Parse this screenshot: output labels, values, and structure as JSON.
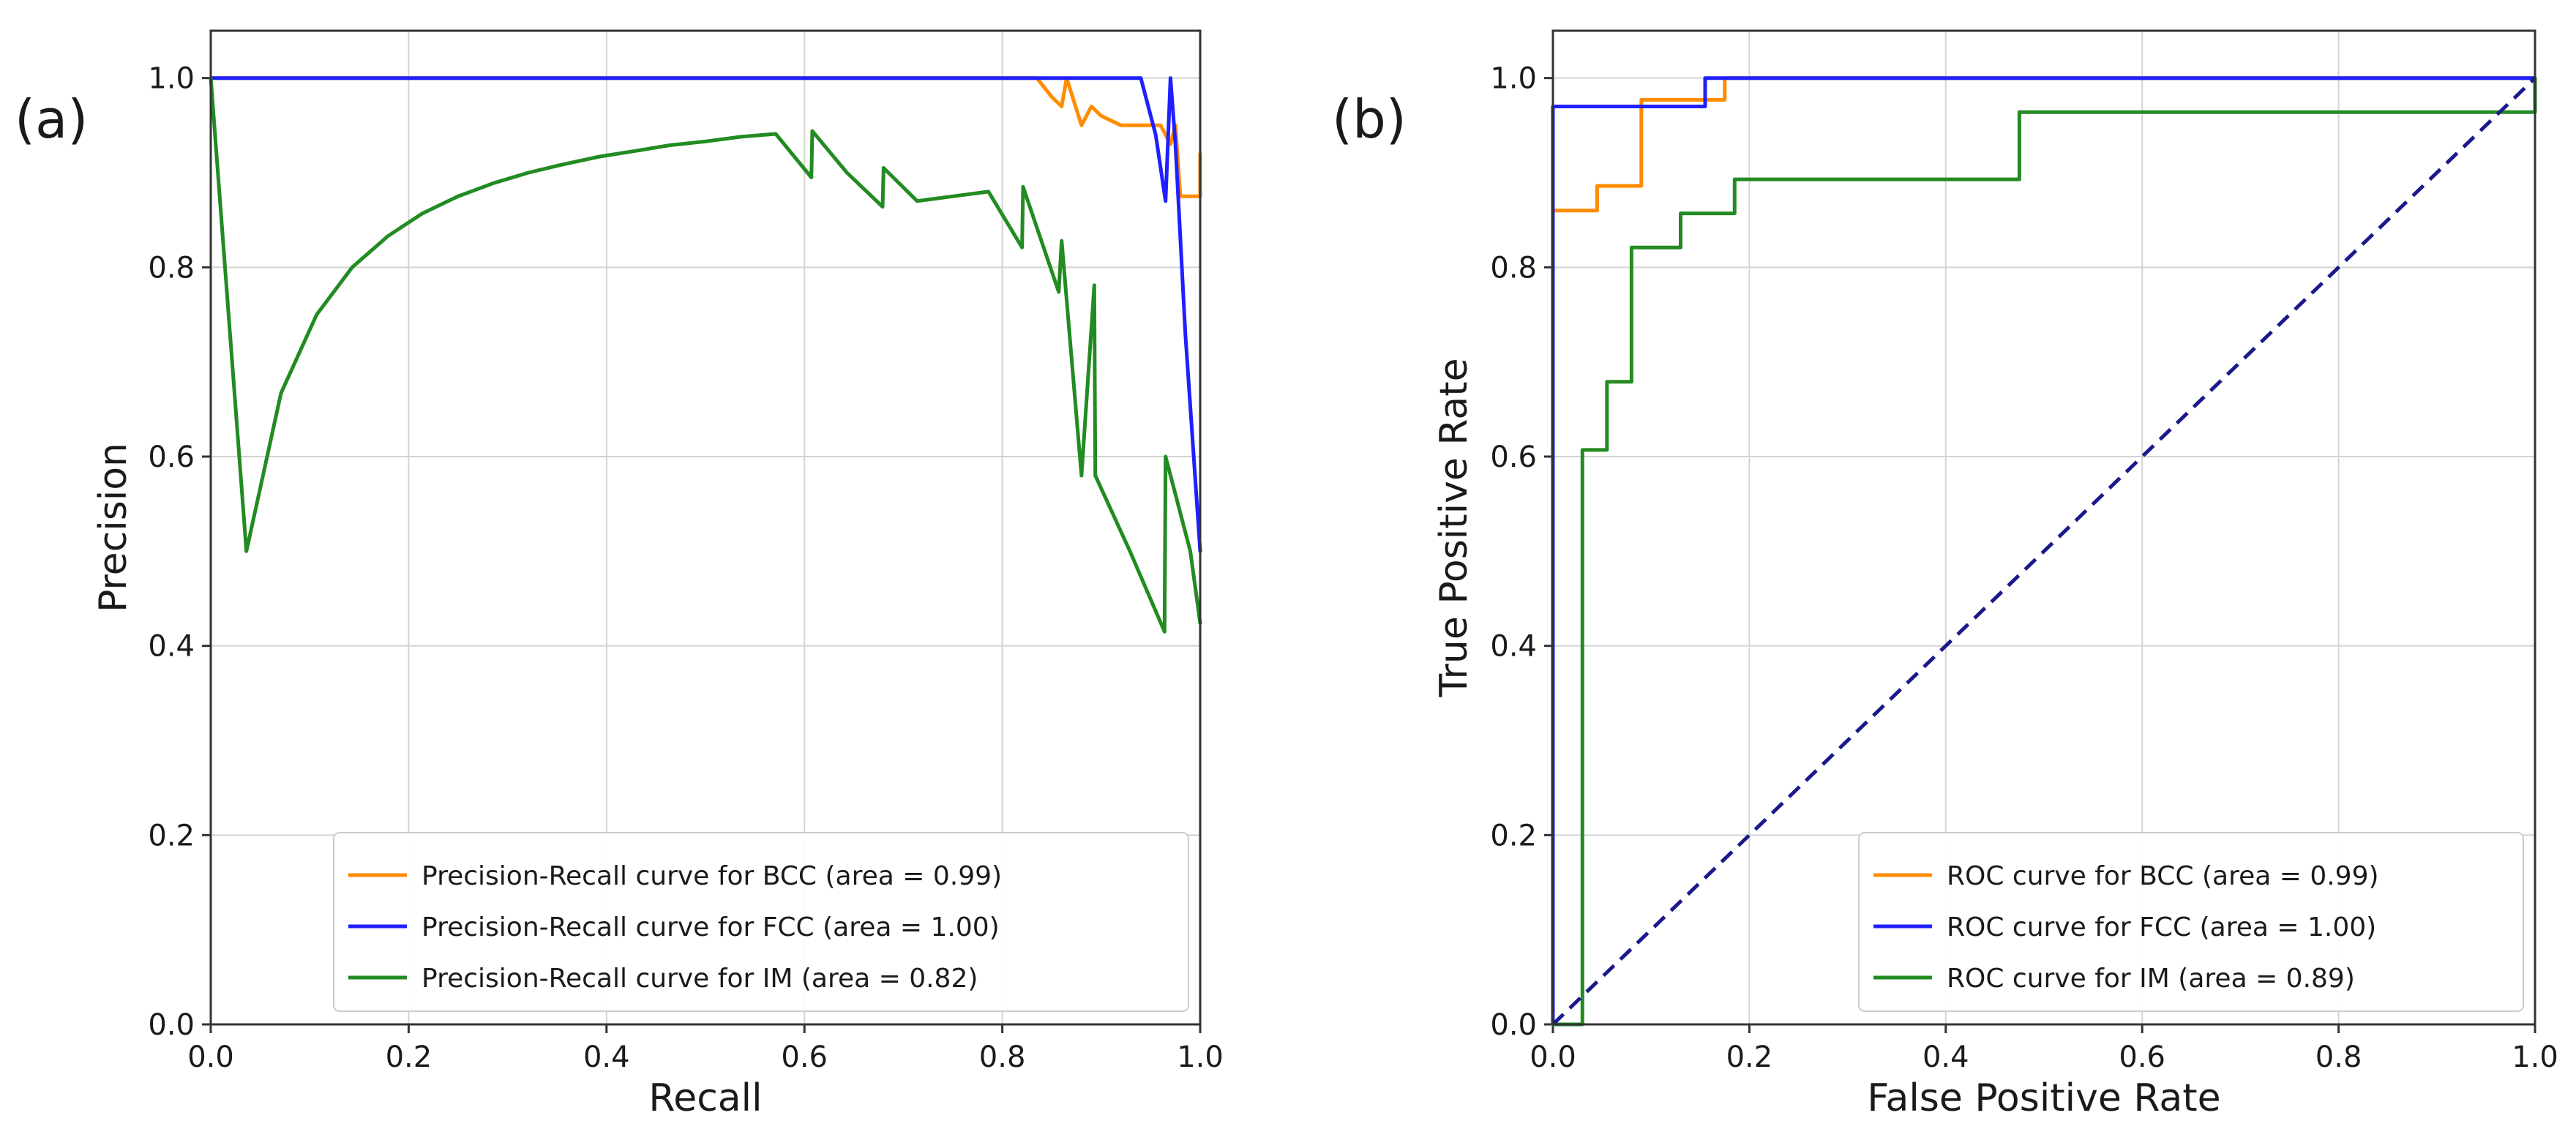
{
  "chart_data": [
    {
      "panel_label": "(a)",
      "type": "line",
      "title": "",
      "xlabel": "Recall",
      "ylabel": "Precision",
      "xlim": [
        0,
        1
      ],
      "ylim": [
        0,
        1.05
      ],
      "xticks": [
        "0.0",
        "0.2",
        "0.4",
        "0.6",
        "0.8",
        "1.0"
      ],
      "yticks": [
        "0.0",
        "0.2",
        "0.4",
        "0.6",
        "0.8",
        "1.0"
      ],
      "xtick_values": [
        0,
        0.2,
        0.4,
        0.6,
        0.8,
        1.0
      ],
      "ytick_values": [
        0,
        0.2,
        0.4,
        0.6,
        0.8,
        1.0
      ],
      "grid": true,
      "legend_position": "lower-right",
      "series": [
        {
          "name": "Precision-Recall curve for BCC (area = 0.99)",
          "color": "#ff8c00",
          "x": [
            0,
            0.835,
            0.85,
            0.86,
            0.865,
            0.88,
            0.89,
            0.9,
            0.92,
            0.94,
            0.96,
            0.97,
            0.975,
            0.98,
            1.0,
            1.0
          ],
          "y": [
            1.0,
            1.0,
            0.98,
            0.97,
            1.0,
            0.95,
            0.97,
            0.96,
            0.95,
            0.95,
            0.95,
            0.93,
            0.95,
            0.875,
            0.875,
            0.92
          ]
        },
        {
          "name": "Precision-Recall curve for FCC (area = 1.00)",
          "color": "#1f1fff",
          "x": [
            0,
            0.94,
            0.955,
            0.965,
            0.97,
            0.975,
            0.985,
            1.0
          ],
          "y": [
            1.0,
            1.0,
            0.94,
            0.87,
            1.0,
            0.93,
            0.73,
            0.5
          ]
        },
        {
          "name": "Precision-Recall curve for IM (area = 0.82)",
          "color": "#228b22",
          "x": [
            0,
            0.036,
            0.071,
            0.107,
            0.143,
            0.179,
            0.214,
            0.25,
            0.286,
            0.321,
            0.357,
            0.393,
            0.429,
            0.464,
            0.5,
            0.536,
            0.571,
            0.607,
            0.608,
            0.643,
            0.679,
            0.68,
            0.714,
            0.75,
            0.786,
            0.82,
            0.821,
            0.857,
            0.86,
            0.88,
            0.893,
            0.894,
            0.929,
            0.964,
            0.965,
            0.99,
            1.0
          ],
          "y": [
            1.0,
            0.5,
            0.667,
            0.75,
            0.8,
            0.833,
            0.857,
            0.875,
            0.889,
            0.9,
            0.909,
            0.917,
            0.923,
            0.929,
            0.933,
            0.938,
            0.941,
            0.895,
            0.944,
            0.9,
            0.864,
            0.905,
            0.87,
            0.875,
            0.88,
            0.821,
            0.885,
            0.774,
            0.828,
            0.58,
            0.781,
            0.58,
            0.5,
            0.415,
            0.6,
            0.5,
            0.424
          ]
        }
      ]
    },
    {
      "panel_label": "(b)",
      "type": "line",
      "title": "",
      "xlabel": "False Positive Rate",
      "ylabel": "True Positive Rate",
      "xlim": [
        0,
        1
      ],
      "ylim": [
        0,
        1.05
      ],
      "xticks": [
        "0.0",
        "0.2",
        "0.4",
        "0.6",
        "0.8",
        "1.0"
      ],
      "yticks": [
        "0.0",
        "0.2",
        "0.4",
        "0.6",
        "0.8",
        "1.0"
      ],
      "xtick_values": [
        0,
        0.2,
        0.4,
        0.6,
        0.8,
        1.0
      ],
      "ytick_values": [
        0,
        0.2,
        0.4,
        0.6,
        0.8,
        1.0
      ],
      "grid": true,
      "legend_position": "lower-right",
      "series": [
        {
          "name": "ROC curve for BCC (area = 0.99)",
          "color": "#ff8c00",
          "x": [
            0,
            0,
            0.045,
            0.045,
            0.09,
            0.09,
            0.14,
            0.14,
            0.175,
            0.175,
            0.23,
            0.32,
            1.0
          ],
          "y": [
            0,
            0.86,
            0.86,
            0.886,
            0.886,
            0.977,
            0.977,
            0.977,
            0.977,
            1.0,
            1.0,
            1.0,
            1.0
          ]
        },
        {
          "name": "ROC curve for FCC (area = 1.00)",
          "color": "#1f1fff",
          "x": [
            0,
            0,
            0.155,
            0.155,
            1.0,
            1.0
          ],
          "y": [
            0,
            0.97,
            0.97,
            1.0,
            1.0,
            1.0
          ]
        },
        {
          "name": "ROC curve for IM (area = 0.89)",
          "color": "#228b22",
          "x": [
            0,
            0.03,
            0.03,
            0.055,
            0.055,
            0.08,
            0.08,
            0.13,
            0.13,
            0.185,
            0.185,
            0.475,
            0.475,
            1.0,
            1.0
          ],
          "y": [
            0,
            0,
            0.607,
            0.607,
            0.679,
            0.679,
            0.821,
            0.821,
            0.857,
            0.857,
            0.893,
            0.893,
            0.964,
            0.964,
            1.0
          ]
        },
        {
          "name": "diagonal",
          "color": "#1a1a8c",
          "dashed": true,
          "legend": false,
          "x": [
            0,
            1
          ],
          "y": [
            0,
            1
          ]
        }
      ]
    }
  ]
}
